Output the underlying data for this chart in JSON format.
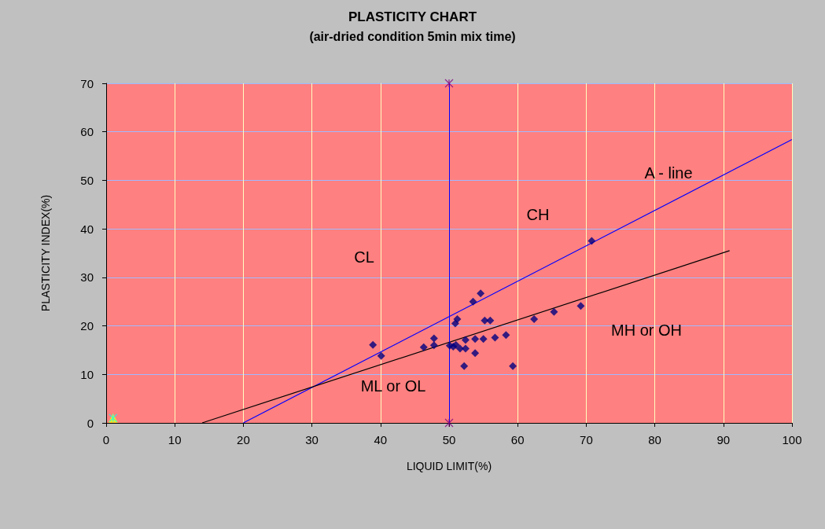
{
  "chart_data": {
    "type": "scatter",
    "title": "PLASTICITY CHART",
    "subtitle": "(air-dried condition 5min mix time)",
    "xlabel": "LIQUID LIMIT(%)",
    "ylabel": "PLASTICITY INDEX(%)",
    "xlim": [
      0,
      100
    ],
    "xticks": [
      0,
      10,
      20,
      30,
      40,
      50,
      60,
      70,
      80,
      90,
      100
    ],
    "ylim": [
      0,
      70
    ],
    "yticks": [
      0,
      10,
      20,
      30,
      40,
      50,
      60,
      70
    ],
    "grid": true,
    "marker": "diamond",
    "series": [
      {
        "color": "#000080",
        "x": [
          38.9,
          40.1,
          46.3,
          47.8,
          47.8,
          50.1,
          50.6,
          51.0,
          51.2,
          50.9,
          51.6,
          52.4,
          52.4,
          52.2,
          53.5,
          54.6,
          53.8,
          53.8,
          55.0,
          55.2,
          56.0,
          56.7,
          58.3,
          59.3,
          62.4,
          65.3,
          69.2,
          70.8
        ],
        "values": [
          16.1,
          13.8,
          15.6,
          17.4,
          16.0,
          15.9,
          15.7,
          16.1,
          21.4,
          20.5,
          15.3,
          15.3,
          17.1,
          11.7,
          25.0,
          26.7,
          17.3,
          14.4,
          17.3,
          21.1,
          21.1,
          17.6,
          18.1,
          11.7,
          21.4,
          22.9,
          24.1,
          37.5
        ]
      },
      {
        "type": "line",
        "marker": "none",
        "color": "#0000ff",
        "x": [
          20,
          100
        ],
        "values": [
          0,
          58.4
        ]
      },
      {
        "type": "line",
        "marker": "none",
        "color": "#000000",
        "x": [
          14,
          90.9
        ],
        "values": [
          0,
          35.5
        ]
      },
      {
        "marker": "cross",
        "color": "#800080",
        "x": [
          50,
          50
        ],
        "values": [
          0,
          70
        ]
      },
      {
        "marker": "triangle",
        "color": "#ffff00",
        "x": [
          1
        ],
        "values": [
          1
        ]
      },
      {
        "marker": "cross",
        "color": "#00ffff",
        "x": [
          1
        ],
        "values": [
          1
        ]
      }
    ],
    "ref_lines": [
      {
        "axis": "x",
        "value": 50,
        "color": "#0000ff"
      }
    ],
    "annotations": [
      "CL",
      "CH",
      "A - line",
      "MH or OH",
      "ML or OL"
    ]
  }
}
